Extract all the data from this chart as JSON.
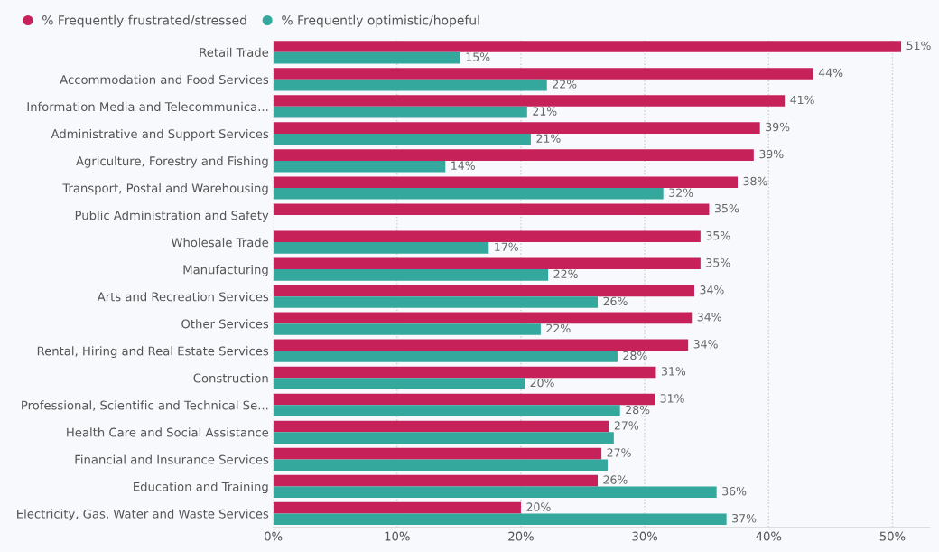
{
  "chart_data": {
    "type": "bar",
    "orientation": "horizontal",
    "categories": [
      "Retail Trade",
      "Accommodation and Food Services",
      "Information Media and Telecommunica...",
      "Administrative and Support Services",
      "Agriculture, Forestry and Fishing",
      "Transport, Postal and Warehousing",
      "Public Administration and Safety",
      "Wholesale Trade",
      "Manufacturing",
      "Arts and Recreation Services",
      "Other Services",
      "Rental, Hiring and Real Estate Services",
      "Construction",
      "Professional, Scientific and Technical Se...",
      "Health Care and Social Assistance",
      "Financial and Insurance Services",
      "Education and Training",
      "Electricity, Gas, Water and Waste Services"
    ],
    "series": [
      {
        "name": "% Frequently frustrated/stressed",
        "color": "#c7215a",
        "values": [
          50.7,
          43.6,
          41.3,
          39.3,
          38.8,
          37.5,
          35.2,
          34.5,
          34.5,
          34.0,
          33.8,
          33.5,
          30.9,
          30.8,
          27.1,
          26.5,
          26.2,
          20.0
        ],
        "value_labels": [
          "51%",
          "44%",
          "41%",
          "39%",
          "39%",
          "38%",
          "35%",
          "35%",
          "35%",
          "34%",
          "34%",
          "34%",
          "31%",
          "31%",
          "27%",
          "27%",
          "26%",
          "20%"
        ]
      },
      {
        "name": "% Frequently optimistic/hopeful",
        "color": "#35a89e",
        "values": [
          15.1,
          22.1,
          20.5,
          20.8,
          13.9,
          31.5,
          null,
          17.4,
          22.2,
          26.2,
          21.6,
          27.8,
          20.3,
          28.0,
          27.5,
          27.0,
          35.8,
          36.6
        ],
        "value_labels": [
          "15%",
          "22%",
          "21%",
          "21%",
          "14%",
          "32%",
          null,
          "17%",
          "22%",
          "26%",
          "22%",
          "28%",
          "20%",
          "28%",
          null,
          null,
          "36%",
          "37%"
        ]
      }
    ],
    "xlim": [
      0,
      53
    ],
    "xticks": [
      {
        "value": 0,
        "label": "0%"
      },
      {
        "value": 10,
        "label": "10%"
      },
      {
        "value": 20,
        "label": "20%"
      },
      {
        "value": 30,
        "label": "30%"
      },
      {
        "value": 40,
        "label": "40%"
      },
      {
        "value": 50,
        "label": "50%"
      }
    ],
    "grid": "x",
    "legend": "top left"
  }
}
